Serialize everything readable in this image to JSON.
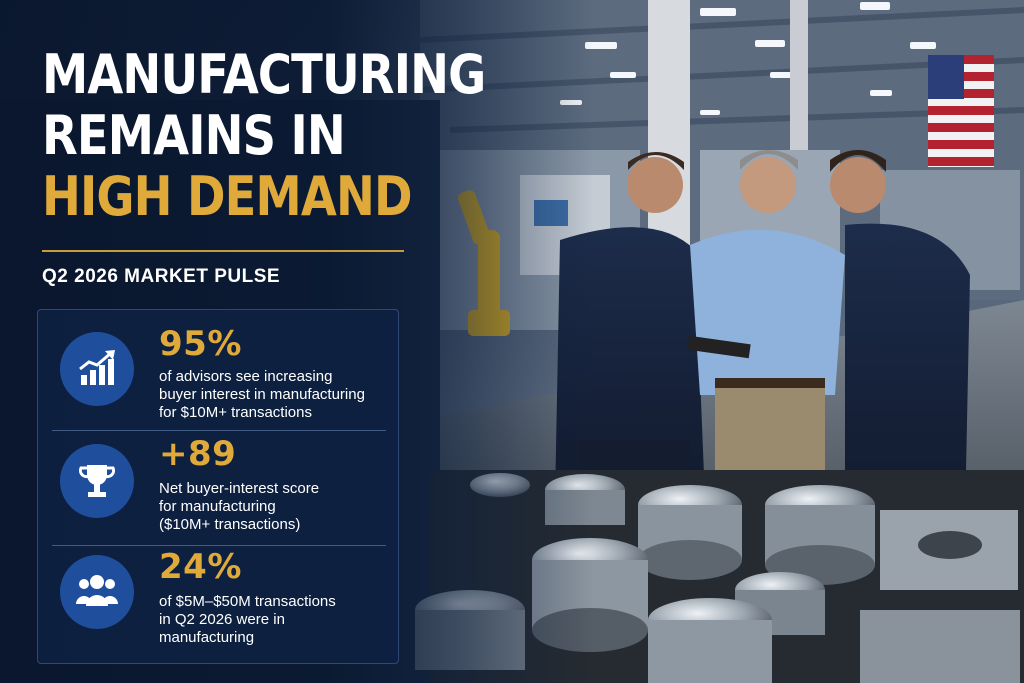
{
  "headline": {
    "line1": "MANUFACTURING",
    "line2": "REMAINS IN",
    "line3": "HIGH DEMAND"
  },
  "subtitle": "Q2 2026 MARKET PULSE",
  "colors": {
    "accent_gold": "#e0aa3b",
    "navy": "#0b1a33",
    "icon_blue": "#1f4f9c"
  },
  "stats": [
    {
      "icon": "growth-chart-icon",
      "value": "95%",
      "text_lines": [
        "of advisors see increasing",
        "buyer interest in manufacturing",
        "for $10M+ transactions"
      ]
    },
    {
      "icon": "trophy-icon",
      "value": "+89",
      "text_lines": [
        "Net buyer-interest score",
        "for manufacturing",
        "($10M+ transactions)"
      ]
    },
    {
      "icon": "people-group-icon",
      "value": "24%",
      "text_lines": [
        "of $5M–$50M transactions",
        "in Q2 2026 were in",
        "manufacturing"
      ]
    }
  ]
}
